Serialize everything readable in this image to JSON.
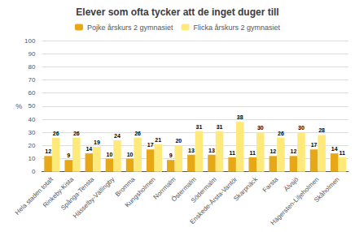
{
  "chart_data": {
    "type": "bar",
    "title": "Elever som ofta tycker att de inget duger till",
    "ylabel": "%",
    "categories": [
      "Hela staden totalt",
      "Rinkeby-Kista",
      "Spånga-Tensta",
      "Hässelby-Vällingby",
      "Bromma",
      "Kungsholmen",
      "Norrmalm",
      "Östermalm",
      "Södermalm",
      "Enskede-Årsta-Vantör",
      "Skarpnäck",
      "Farsta",
      "Älvsjö",
      "Hägersten-Liljeholmen",
      "Skåholmen"
    ],
    "series": [
      {
        "name": "Pojke årskurs 2 gymnasiet",
        "color": "#e6a817",
        "values": [
          12,
          9,
          14,
          10,
          10,
          17,
          9,
          13,
          13,
          11,
          11,
          12,
          12,
          17,
          14
        ]
      },
      {
        "name": "Flicka årskurs 2 gymnasiet",
        "color": "#ffe97a",
        "values": [
          26,
          26,
          19,
          24,
          26,
          21,
          20,
          31,
          31,
          38,
          30,
          26,
          30,
          28,
          11
        ]
      }
    ],
    "ylim": [
      0,
      100
    ],
    "yticks": [
      0,
      10,
      20,
      30,
      40,
      50,
      60,
      70,
      80,
      90,
      100
    ],
    "grid": true,
    "legend": "top",
    "data_labels": true
  }
}
